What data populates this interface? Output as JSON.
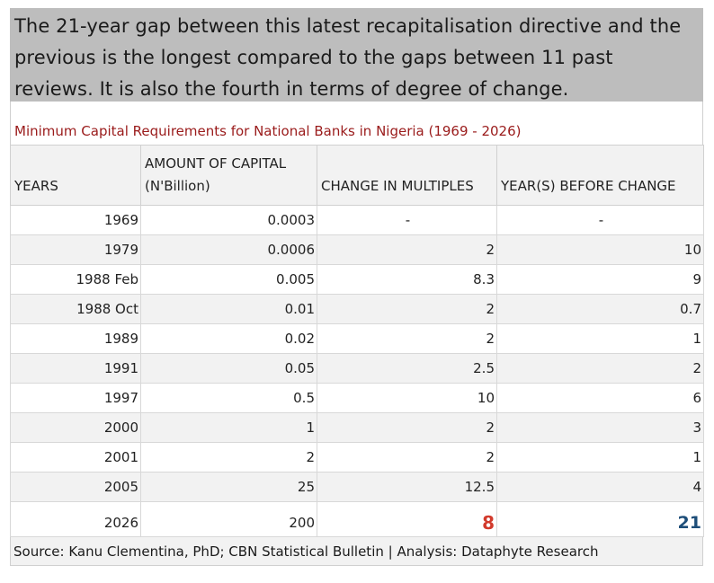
{
  "headline": "The 21-year gap between this latest recapitalisation directive and the previous is the longest compared to the gaps between 11 past reviews. It is also the fourth in terms of degree of change.",
  "subtitle": "Minimum Capital Requirements for National Banks in Nigeria (1969 - 2026)",
  "columns": [
    "YEARS",
    "AMOUNT OF CAPITAL (N'Billion)",
    "CHANGE IN MULTIPLES",
    "YEAR(S) BEFORE CHANGE"
  ],
  "rows": [
    {
      "year": "1969",
      "amount": "0.0003",
      "multiple": "-",
      "years_before": "-"
    },
    {
      "year": "1979",
      "amount": "0.0006",
      "multiple": "2",
      "years_before": "10"
    },
    {
      "year": "1988 Feb",
      "amount": "0.005",
      "multiple": "8.3",
      "years_before": "9"
    },
    {
      "year": "1988 Oct",
      "amount": "0.01",
      "multiple": "2",
      "years_before": "0.7"
    },
    {
      "year": "1989",
      "amount": "0.02",
      "multiple": "2",
      "years_before": "1"
    },
    {
      "year": "1991",
      "amount": "0.05",
      "multiple": "2.5",
      "years_before": "2"
    },
    {
      "year": "1997",
      "amount": "0.5",
      "multiple": "10",
      "years_before": "6"
    },
    {
      "year": "2000",
      "amount": "1",
      "multiple": "2",
      "years_before": "3"
    },
    {
      "year": "2001",
      "amount": "2",
      "multiple": "2",
      "years_before": "1"
    },
    {
      "year": "2005",
      "amount": "25",
      "multiple": "12.5",
      "years_before": "4"
    },
    {
      "year": "2026",
      "amount": "200",
      "multiple": "8",
      "years_before": "21"
    }
  ],
  "highlight_colors": {
    "multiple": "#d23a2c",
    "years_before": "#1e4e79"
  },
  "source": "Source: Kanu Clementina, PhD; CBN Statistical Bulletin | Analysis: Dataphyte Research"
}
